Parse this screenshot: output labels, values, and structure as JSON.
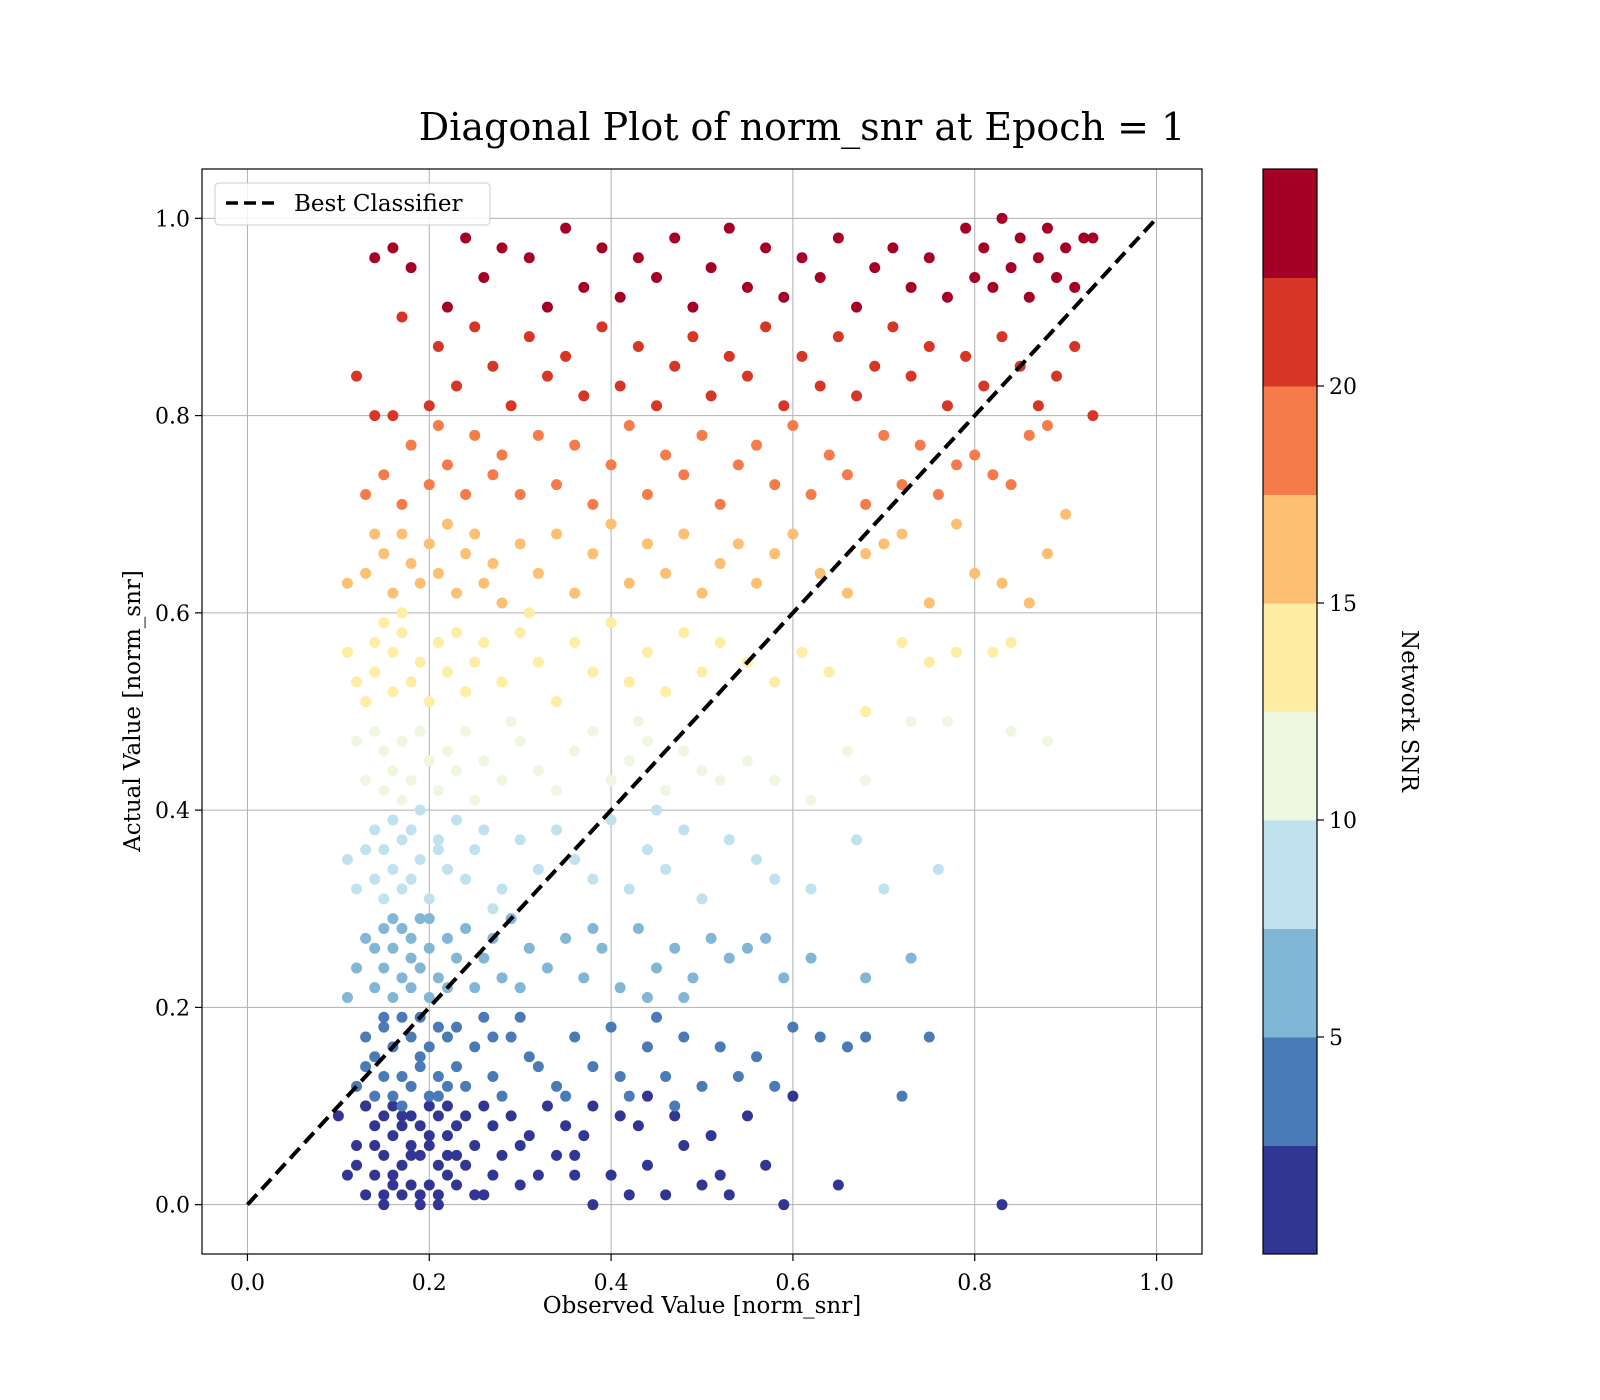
{
  "chart_data": {
    "type": "scatter",
    "title": "Diagonal Plot of norm_snr at Epoch = 1",
    "xlabel": "Observed Value [norm_snr]",
    "ylabel": "Actual Value [norm_snr]",
    "xlim": [
      -0.05,
      1.05
    ],
    "ylim": [
      -0.05,
      1.05
    ],
    "xticks": [
      "0.0",
      "0.2",
      "0.4",
      "0.6",
      "0.8",
      "1.0"
    ],
    "yticks": [
      "0.0",
      "0.2",
      "0.4",
      "0.6",
      "0.8",
      "1.0"
    ],
    "grid": true,
    "legend": {
      "placement": "upper-left",
      "entries": [
        {
          "label": "Best Classifier",
          "style": "dashed",
          "color": "#000000"
        }
      ]
    },
    "reference_line": {
      "name": "Best Classifier",
      "x": [
        0.0,
        1.0
      ],
      "y": [
        0.0,
        1.0
      ]
    },
    "colorbar": {
      "label": "Network SNR",
      "range": [
        0,
        25
      ],
      "ticks": [
        "5",
        "10",
        "15",
        "20"
      ],
      "bands": [
        "#313695",
        "#4a7ab7",
        "#82b6d6",
        "#c0e2ee",
        "#eef7e0",
        "#feeda2",
        "#fdbf71",
        "#f57c4a",
        "#d73627",
        "#a50026"
      ]
    },
    "series": [
      {
        "color": "#313695",
        "x": [
          0.1,
          0.11,
          0.12,
          0.13,
          0.13,
          0.14,
          0.14,
          0.15,
          0.15,
          0.15,
          0.16,
          0.16,
          0.16,
          0.17,
          0.17,
          0.17,
          0.18,
          0.18,
          0.18,
          0.19,
          0.19,
          0.19,
          0.2,
          0.2,
          0.2,
          0.21,
          0.21,
          0.21,
          0.22,
          0.22,
          0.22,
          0.23,
          0.23,
          0.24,
          0.24,
          0.25,
          0.25,
          0.26,
          0.27,
          0.27,
          0.28,
          0.29,
          0.3,
          0.31,
          0.32,
          0.33,
          0.34,
          0.35,
          0.36,
          0.37,
          0.38,
          0.38,
          0.4,
          0.41,
          0.42,
          0.43,
          0.44,
          0.46,
          0.47,
          0.48,
          0.5,
          0.51,
          0.53,
          0.55,
          0.57,
          0.59,
          0.12,
          0.14,
          0.16,
          0.18,
          0.2,
          0.22,
          0.17,
          0.19,
          0.15,
          0.13,
          0.21,
          0.23,
          0.65,
          0.83,
          0.44,
          0.52,
          0.36,
          0.3,
          0.26,
          0.6
        ],
        "y": [
          0.09,
          0.03,
          0.06,
          0.01,
          0.1,
          0.03,
          0.08,
          0.01,
          0.05,
          0.09,
          0.02,
          0.07,
          0.1,
          0.01,
          0.04,
          0.08,
          0.02,
          0.06,
          0.09,
          0.01,
          0.05,
          0.08,
          0.02,
          0.06,
          0.1,
          0.01,
          0.04,
          0.09,
          0.03,
          0.07,
          0.1,
          0.02,
          0.08,
          0.04,
          0.09,
          0.01,
          0.06,
          0.1,
          0.03,
          0.08,
          0.05,
          0.09,
          0.02,
          0.07,
          0.03,
          0.1,
          0.05,
          0.08,
          0.03,
          0.07,
          0.0,
          0.1,
          0.03,
          0.09,
          0.01,
          0.08,
          0.04,
          0.01,
          0.09,
          0.06,
          0.02,
          0.07,
          0.01,
          0.09,
          0.04,
          0.0,
          0.04,
          0.06,
          0.03,
          0.05,
          0.07,
          0.05,
          0.09,
          0.0,
          0.0,
          0.1,
          0.0,
          0.05,
          0.02,
          0.0,
          0.11,
          0.03,
          0.05,
          0.06,
          0.01,
          0.11
        ]
      },
      {
        "color": "#4a7ab7",
        "x": [
          0.12,
          0.13,
          0.14,
          0.14,
          0.15,
          0.15,
          0.16,
          0.16,
          0.17,
          0.17,
          0.18,
          0.18,
          0.19,
          0.19,
          0.2,
          0.2,
          0.21,
          0.21,
          0.22,
          0.22,
          0.23,
          0.24,
          0.25,
          0.26,
          0.27,
          0.28,
          0.29,
          0.3,
          0.32,
          0.34,
          0.36,
          0.38,
          0.4,
          0.42,
          0.44,
          0.46,
          0.48,
          0.5,
          0.52,
          0.54,
          0.56,
          0.58,
          0.6,
          0.63,
          0.66,
          0.68,
          0.72,
          0.75,
          0.17,
          0.19,
          0.21,
          0.15,
          0.13,
          0.23,
          0.41,
          0.45,
          0.47,
          0.35,
          0.31,
          0.27
        ],
        "y": [
          0.12,
          0.17,
          0.11,
          0.15,
          0.13,
          0.18,
          0.11,
          0.16,
          0.13,
          0.19,
          0.12,
          0.17,
          0.14,
          0.19,
          0.11,
          0.16,
          0.13,
          0.18,
          0.12,
          0.17,
          0.14,
          0.12,
          0.16,
          0.19,
          0.13,
          0.11,
          0.17,
          0.19,
          0.14,
          0.12,
          0.17,
          0.14,
          0.18,
          0.11,
          0.16,
          0.13,
          0.17,
          0.12,
          0.16,
          0.13,
          0.15,
          0.12,
          0.18,
          0.17,
          0.16,
          0.17,
          0.11,
          0.17,
          0.1,
          0.15,
          0.11,
          0.19,
          0.14,
          0.18,
          0.13,
          0.19,
          0.1,
          0.11,
          0.15,
          0.17
        ]
      },
      {
        "color": "#82b6d6",
        "x": [
          0.11,
          0.12,
          0.13,
          0.14,
          0.14,
          0.15,
          0.15,
          0.16,
          0.16,
          0.17,
          0.17,
          0.18,
          0.18,
          0.19,
          0.19,
          0.2,
          0.2,
          0.21,
          0.22,
          0.22,
          0.23,
          0.24,
          0.25,
          0.26,
          0.27,
          0.28,
          0.29,
          0.3,
          0.31,
          0.33,
          0.35,
          0.37,
          0.39,
          0.41,
          0.43,
          0.45,
          0.47,
          0.49,
          0.51,
          0.53,
          0.55,
          0.57,
          0.59,
          0.62,
          0.68,
          0.73,
          0.16,
          0.18,
          0.2,
          0.44,
          0.48,
          0.38
        ],
        "y": [
          0.21,
          0.24,
          0.27,
          0.22,
          0.26,
          0.24,
          0.28,
          0.21,
          0.26,
          0.23,
          0.28,
          0.22,
          0.27,
          0.24,
          0.29,
          0.21,
          0.26,
          0.23,
          0.27,
          0.22,
          0.25,
          0.28,
          0.22,
          0.25,
          0.27,
          0.23,
          0.29,
          0.22,
          0.26,
          0.24,
          0.27,
          0.23,
          0.26,
          0.22,
          0.28,
          0.24,
          0.26,
          0.23,
          0.27,
          0.25,
          0.26,
          0.27,
          0.23,
          0.25,
          0.23,
          0.25,
          0.29,
          0.25,
          0.29,
          0.21,
          0.21,
          0.28
        ]
      },
      {
        "color": "#c0e2ee",
        "x": [
          0.11,
          0.12,
          0.13,
          0.14,
          0.14,
          0.15,
          0.15,
          0.16,
          0.16,
          0.17,
          0.17,
          0.18,
          0.18,
          0.19,
          0.2,
          0.21,
          0.22,
          0.23,
          0.24,
          0.25,
          0.26,
          0.28,
          0.3,
          0.32,
          0.34,
          0.36,
          0.38,
          0.4,
          0.42,
          0.44,
          0.46,
          0.48,
          0.5,
          0.53,
          0.56,
          0.58,
          0.62,
          0.67,
          0.7,
          0.76,
          0.19,
          0.21,
          0.45,
          0.27
        ],
        "y": [
          0.35,
          0.32,
          0.36,
          0.33,
          0.38,
          0.31,
          0.36,
          0.34,
          0.39,
          0.32,
          0.37,
          0.33,
          0.38,
          0.35,
          0.31,
          0.37,
          0.34,
          0.39,
          0.33,
          0.36,
          0.38,
          0.32,
          0.37,
          0.34,
          0.38,
          0.35,
          0.33,
          0.39,
          0.32,
          0.36,
          0.34,
          0.38,
          0.31,
          0.37,
          0.35,
          0.33,
          0.32,
          0.37,
          0.32,
          0.34,
          0.4,
          0.36,
          0.4,
          0.3
        ]
      },
      {
        "color": "#eef7e0",
        "x": [
          0.12,
          0.13,
          0.14,
          0.15,
          0.15,
          0.16,
          0.17,
          0.17,
          0.18,
          0.19,
          0.2,
          0.21,
          0.22,
          0.23,
          0.24,
          0.25,
          0.26,
          0.28,
          0.3,
          0.32,
          0.34,
          0.36,
          0.38,
          0.4,
          0.42,
          0.44,
          0.46,
          0.48,
          0.5,
          0.52,
          0.55,
          0.58,
          0.62,
          0.66,
          0.68,
          0.73,
          0.77,
          0.84,
          0.88,
          0.29,
          0.43
        ],
        "y": [
          0.47,
          0.43,
          0.48,
          0.42,
          0.46,
          0.44,
          0.41,
          0.47,
          0.43,
          0.48,
          0.45,
          0.42,
          0.46,
          0.44,
          0.48,
          0.41,
          0.45,
          0.43,
          0.47,
          0.44,
          0.42,
          0.46,
          0.48,
          0.43,
          0.45,
          0.47,
          0.42,
          0.46,
          0.44,
          0.43,
          0.45,
          0.43,
          0.41,
          0.46,
          0.43,
          0.49,
          0.49,
          0.48,
          0.47,
          0.49,
          0.49
        ]
      },
      {
        "color": "#feeda2",
        "x": [
          0.11,
          0.12,
          0.13,
          0.14,
          0.14,
          0.15,
          0.16,
          0.16,
          0.17,
          0.18,
          0.19,
          0.2,
          0.21,
          0.22,
          0.23,
          0.24,
          0.25,
          0.26,
          0.28,
          0.3,
          0.32,
          0.34,
          0.36,
          0.38,
          0.4,
          0.42,
          0.44,
          0.46,
          0.48,
          0.5,
          0.52,
          0.55,
          0.58,
          0.61,
          0.64,
          0.68,
          0.72,
          0.75,
          0.78,
          0.82,
          0.84,
          0.17,
          0.31
        ],
        "y": [
          0.56,
          0.53,
          0.51,
          0.57,
          0.54,
          0.59,
          0.52,
          0.56,
          0.58,
          0.53,
          0.55,
          0.51,
          0.57,
          0.54,
          0.58,
          0.52,
          0.55,
          0.57,
          0.53,
          0.58,
          0.55,
          0.51,
          0.57,
          0.54,
          0.59,
          0.53,
          0.56,
          0.52,
          0.58,
          0.54,
          0.57,
          0.55,
          0.53,
          0.56,
          0.54,
          0.5,
          0.57,
          0.55,
          0.56,
          0.56,
          0.57,
          0.6,
          0.6
        ]
      },
      {
        "color": "#fdbf71",
        "x": [
          0.11,
          0.13,
          0.14,
          0.15,
          0.16,
          0.17,
          0.18,
          0.19,
          0.2,
          0.21,
          0.22,
          0.23,
          0.24,
          0.25,
          0.26,
          0.27,
          0.28,
          0.3,
          0.32,
          0.34,
          0.36,
          0.38,
          0.4,
          0.42,
          0.44,
          0.46,
          0.48,
          0.5,
          0.52,
          0.54,
          0.56,
          0.58,
          0.6,
          0.63,
          0.66,
          0.68,
          0.7,
          0.72,
          0.75,
          0.78,
          0.8,
          0.83,
          0.86,
          0.88,
          0.9
        ],
        "y": [
          0.63,
          0.64,
          0.68,
          0.66,
          0.62,
          0.68,
          0.65,
          0.63,
          0.67,
          0.64,
          0.69,
          0.62,
          0.66,
          0.68,
          0.63,
          0.65,
          0.61,
          0.67,
          0.64,
          0.68,
          0.62,
          0.66,
          0.69,
          0.63,
          0.67,
          0.64,
          0.68,
          0.62,
          0.65,
          0.67,
          0.63,
          0.66,
          0.68,
          0.64,
          0.62,
          0.66,
          0.67,
          0.68,
          0.61,
          0.69,
          0.64,
          0.63,
          0.61,
          0.66,
          0.7
        ]
      },
      {
        "color": "#f57c4a",
        "x": [
          0.13,
          0.15,
          0.17,
          0.18,
          0.2,
          0.21,
          0.22,
          0.24,
          0.25,
          0.27,
          0.28,
          0.3,
          0.32,
          0.34,
          0.36,
          0.38,
          0.4,
          0.42,
          0.44,
          0.46,
          0.48,
          0.5,
          0.52,
          0.54,
          0.56,
          0.58,
          0.6,
          0.62,
          0.64,
          0.66,
          0.68,
          0.7,
          0.72,
          0.74,
          0.76,
          0.78,
          0.8,
          0.82,
          0.84,
          0.86,
          0.88
        ],
        "y": [
          0.72,
          0.74,
          0.71,
          0.77,
          0.73,
          0.79,
          0.75,
          0.72,
          0.78,
          0.74,
          0.76,
          0.72,
          0.78,
          0.73,
          0.77,
          0.71,
          0.75,
          0.79,
          0.72,
          0.76,
          0.74,
          0.78,
          0.71,
          0.75,
          0.77,
          0.73,
          0.79,
          0.72,
          0.76,
          0.74,
          0.71,
          0.78,
          0.73,
          0.77,
          0.72,
          0.75,
          0.76,
          0.74,
          0.73,
          0.78,
          0.79
        ]
      },
      {
        "color": "#d73627",
        "x": [
          0.12,
          0.14,
          0.16,
          0.17,
          0.2,
          0.21,
          0.23,
          0.25,
          0.27,
          0.29,
          0.31,
          0.33,
          0.35,
          0.37,
          0.39,
          0.41,
          0.43,
          0.45,
          0.47,
          0.49,
          0.51,
          0.53,
          0.55,
          0.57,
          0.59,
          0.61,
          0.63,
          0.65,
          0.67,
          0.69,
          0.71,
          0.73,
          0.75,
          0.77,
          0.79,
          0.81,
          0.83,
          0.85,
          0.87,
          0.89,
          0.91,
          0.93
        ],
        "y": [
          0.84,
          0.8,
          0.8,
          0.9,
          0.81,
          0.87,
          0.83,
          0.89,
          0.85,
          0.81,
          0.88,
          0.84,
          0.86,
          0.82,
          0.89,
          0.83,
          0.87,
          0.81,
          0.85,
          0.88,
          0.82,
          0.86,
          0.84,
          0.89,
          0.81,
          0.86,
          0.83,
          0.88,
          0.82,
          0.85,
          0.89,
          0.84,
          0.87,
          0.81,
          0.86,
          0.83,
          0.88,
          0.85,
          0.81,
          0.84,
          0.87,
          0.8
        ]
      },
      {
        "color": "#a50026",
        "x": [
          0.14,
          0.16,
          0.18,
          0.22,
          0.24,
          0.26,
          0.28,
          0.31,
          0.33,
          0.35,
          0.37,
          0.39,
          0.41,
          0.43,
          0.45,
          0.47,
          0.49,
          0.51,
          0.53,
          0.55,
          0.57,
          0.59,
          0.61,
          0.63,
          0.65,
          0.67,
          0.69,
          0.71,
          0.73,
          0.75,
          0.77,
          0.79,
          0.8,
          0.81,
          0.82,
          0.83,
          0.84,
          0.85,
          0.86,
          0.87,
          0.88,
          0.89,
          0.9,
          0.91,
          0.92,
          0.93
        ],
        "y": [
          0.96,
          0.97,
          0.95,
          0.91,
          0.98,
          0.94,
          0.97,
          0.96,
          0.91,
          0.99,
          0.93,
          0.97,
          0.92,
          0.96,
          0.94,
          0.98,
          0.91,
          0.95,
          0.99,
          0.93,
          0.97,
          0.92,
          0.96,
          0.94,
          0.98,
          0.91,
          0.95,
          0.97,
          0.93,
          0.96,
          0.92,
          0.99,
          0.94,
          0.97,
          0.93,
          1.0,
          0.95,
          0.98,
          0.92,
          0.96,
          0.99,
          0.94,
          0.97,
          0.93,
          0.98,
          0.98
        ]
      }
    ]
  }
}
